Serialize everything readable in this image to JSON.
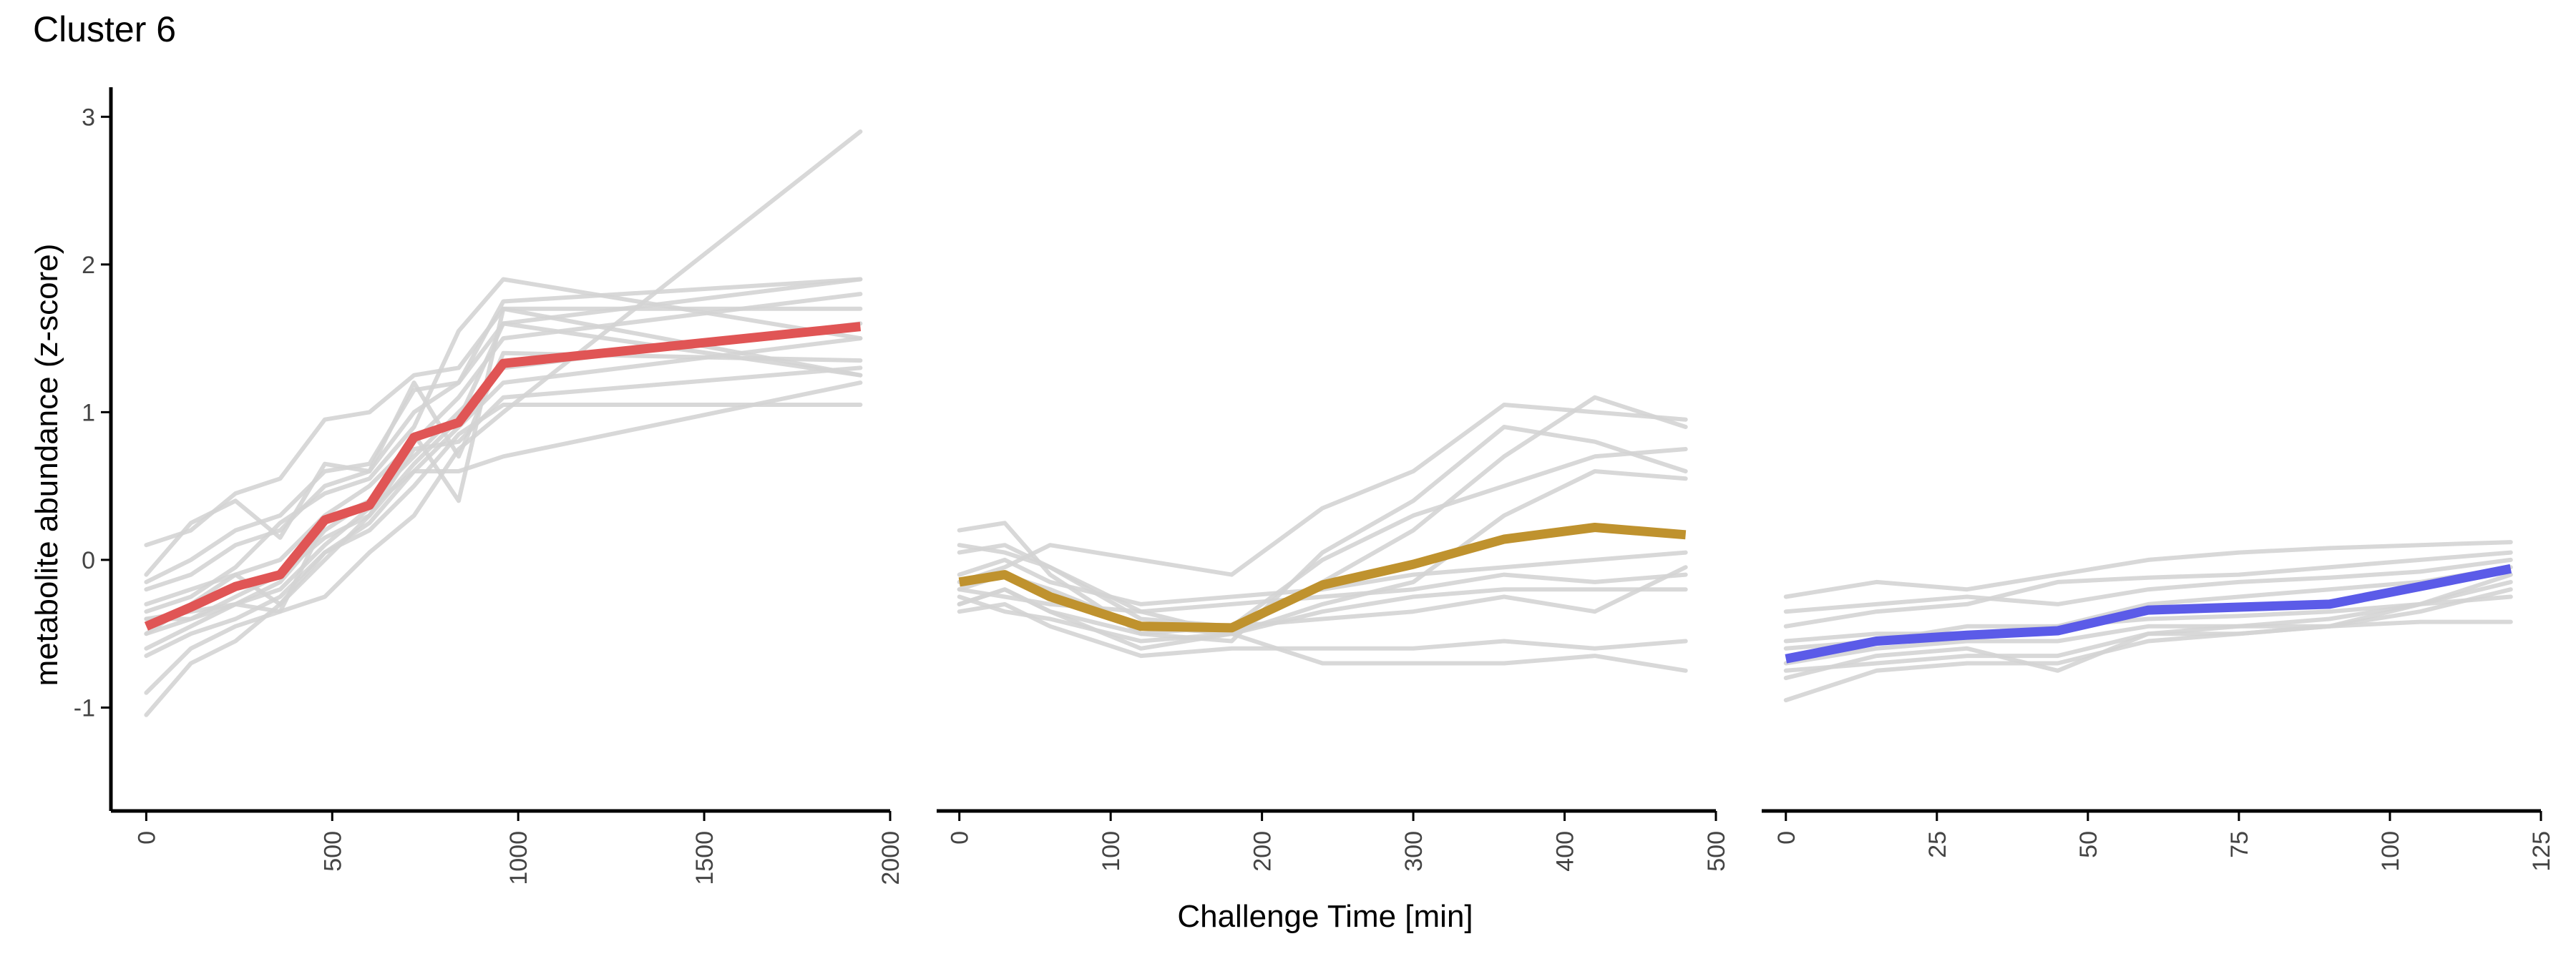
{
  "title": "Cluster 6",
  "xlabel": "Challenge Time [min]",
  "ylabel": "metabolite abundance (z-score)",
  "chart_data": [
    {
      "type": "line",
      "panel": "left",
      "title": "Cluster 6",
      "ylabel": "metabolite abundance (z-score)",
      "xlim": [
        -95,
        2000
      ],
      "ylim": [
        -1.7,
        3.2
      ],
      "xticks": [
        "0",
        "500",
        "1000",
        "1500",
        "2000"
      ],
      "yticks": [
        "-1",
        "0",
        "1",
        "2",
        "3"
      ],
      "x": [
        0,
        120,
        240,
        360,
        480,
        600,
        720,
        840,
        960,
        1920
      ],
      "background_series": [
        [
          -0.4,
          -0.35,
          -0.3,
          -0.15,
          0.2,
          0.4,
          0.7,
          1.0,
          1.3,
          1.6
        ],
        [
          -0.3,
          -0.2,
          -0.1,
          0.0,
          0.3,
          0.5,
          0.8,
          1.1,
          1.5,
          1.8
        ],
        [
          -0.6,
          -0.45,
          -0.3,
          -0.2,
          0.1,
          0.35,
          0.6,
          0.9,
          1.2,
          1.5
        ],
        [
          -0.2,
          -0.1,
          0.1,
          0.2,
          0.5,
          0.6,
          1.0,
          1.2,
          1.6,
          1.9
        ],
        [
          -0.5,
          -0.4,
          -0.25,
          -0.1,
          0.15,
          0.3,
          0.75,
          0.8,
          1.1,
          1.3
        ],
        [
          0.1,
          0.2,
          0.45,
          0.55,
          0.95,
          1.0,
          1.25,
          1.3,
          1.7,
          1.25
        ],
        [
          -1.05,
          -0.7,
          -0.55,
          -0.3,
          0.05,
          0.25,
          0.6,
          0.6,
          0.7,
          1.2
        ],
        [
          -0.9,
          -0.6,
          -0.45,
          -0.35,
          -0.25,
          0.05,
          0.3,
          0.75,
          1.0,
          2.9
        ],
        [
          -0.15,
          0.0,
          0.2,
          0.3,
          0.6,
          0.65,
          1.15,
          1.2,
          1.75,
          1.9
        ],
        [
          -0.35,
          -0.25,
          -0.05,
          0.25,
          0.45,
          0.55,
          0.9,
          1.55,
          1.9,
          1.5
        ],
        [
          -0.65,
          -0.5,
          -0.4,
          -0.25,
          0.05,
          0.2,
          0.5,
          0.85,
          1.05,
          1.05
        ],
        [
          -0.1,
          0.25,
          0.4,
          0.15,
          0.65,
          0.6,
          1.2,
          0.7,
          1.4,
          1.35
        ],
        [
          -0.5,
          -0.3,
          -0.1,
          -0.3,
          0.0,
          0.3,
          0.65,
          0.95,
          1.6,
          1.25
        ],
        [
          -0.4,
          -0.4,
          -0.3,
          -0.35,
          0.25,
          0.4,
          0.85,
          0.4,
          1.7,
          1.7
        ]
      ],
      "highlight": {
        "color": "#e05555",
        "values": [
          -0.45,
          -0.32,
          -0.18,
          -0.1,
          0.27,
          0.37,
          0.83,
          0.93,
          1.33,
          1.58
        ]
      }
    },
    {
      "type": "line",
      "panel": "middle",
      "xlim": [
        -15,
        500
      ],
      "ylim": [
        -1.7,
        3.2
      ],
      "xticks": [
        "0",
        "100",
        "200",
        "300",
        "400",
        "500"
      ],
      "x": [
        0,
        30,
        60,
        120,
        180,
        240,
        300,
        360,
        420,
        480
      ],
      "background_series": [
        [
          -0.2,
          -0.1,
          -0.2,
          -0.45,
          -0.5,
          -0.15,
          0.2,
          0.7,
          1.1,
          0.9
        ],
        [
          0.2,
          0.25,
          -0.1,
          -0.5,
          -0.55,
          0.05,
          0.4,
          0.9,
          0.8,
          0.6
        ],
        [
          -0.3,
          -0.2,
          -0.35,
          -0.6,
          -0.5,
          -0.3,
          -0.15,
          0.3,
          0.6,
          0.55
        ],
        [
          -0.1,
          0.0,
          -0.15,
          -0.3,
          -0.25,
          -0.2,
          -0.1,
          -0.05,
          0.0,
          0.05
        ],
        [
          -0.25,
          -0.35,
          -0.4,
          -0.55,
          -0.5,
          -0.7,
          -0.7,
          -0.7,
          -0.65,
          -0.75
        ],
        [
          -0.15,
          -0.05,
          0.1,
          0.0,
          -0.1,
          0.35,
          0.6,
          1.05,
          1.0,
          0.95
        ],
        [
          -0.35,
          -0.3,
          -0.45,
          -0.65,
          -0.6,
          -0.6,
          -0.6,
          -0.55,
          -0.6,
          -0.55
        ],
        [
          0.05,
          0.1,
          -0.05,
          -0.35,
          -0.5,
          -0.35,
          -0.25,
          -0.2,
          -0.2,
          -0.2
        ],
        [
          -0.2,
          -0.25,
          -0.3,
          -0.35,
          -0.3,
          -0.25,
          -0.2,
          -0.1,
          -0.15,
          -0.1
        ],
        [
          0.1,
          0.05,
          -0.05,
          -0.4,
          -0.45,
          0.0,
          0.3,
          0.5,
          0.7,
          0.75
        ],
        [
          -0.3,
          -0.2,
          -0.35,
          -0.5,
          -0.45,
          -0.4,
          -0.35,
          -0.25,
          -0.35,
          -0.05
        ]
      ],
      "highlight": {
        "color": "#bf922e",
        "values": [
          -0.15,
          -0.1,
          -0.25,
          -0.45,
          -0.46,
          -0.17,
          -0.03,
          0.14,
          0.22,
          0.17
        ]
      }
    },
    {
      "type": "line",
      "panel": "right",
      "xlim": [
        -4,
        125
      ],
      "ylim": [
        -1.7,
        3.2
      ],
      "xticks": [
        "0",
        "25",
        "50",
        "75",
        "100",
        "125"
      ],
      "x": [
        0,
        15,
        30,
        45,
        60,
        75,
        90,
        105,
        120
      ],
      "background_series": [
        [
          -0.25,
          -0.15,
          -0.2,
          -0.1,
          0.0,
          0.05,
          0.08,
          0.1,
          0.12
        ],
        [
          -0.95,
          -0.75,
          -0.7,
          -0.7,
          -0.55,
          -0.5,
          -0.45,
          -0.35,
          -0.2
        ],
        [
          -0.45,
          -0.35,
          -0.3,
          -0.15,
          -0.12,
          -0.1,
          -0.05,
          0.0,
          0.05
        ],
        [
          -0.8,
          -0.65,
          -0.6,
          -0.75,
          -0.5,
          -0.45,
          -0.4,
          -0.3,
          -0.15
        ],
        [
          -0.6,
          -0.55,
          -0.45,
          -0.45,
          -0.4,
          -0.38,
          -0.35,
          -0.3,
          -0.25
        ],
        [
          -0.35,
          -0.3,
          -0.25,
          -0.3,
          -0.2,
          -0.15,
          -0.12,
          -0.08,
          0.0
        ],
        [
          -0.7,
          -0.6,
          -0.55,
          -0.55,
          -0.45,
          -0.45,
          -0.45,
          -0.42,
          -0.42
        ],
        [
          -0.75,
          -0.7,
          -0.65,
          -0.65,
          -0.5,
          -0.5,
          -0.45,
          -0.3,
          -0.1
        ],
        [
          -0.55,
          -0.5,
          -0.5,
          -0.45,
          -0.3,
          -0.25,
          -0.2,
          -0.15,
          -0.05
        ]
      ],
      "highlight": {
        "color": "#5b5be8",
        "values": [
          -0.67,
          -0.55,
          -0.51,
          -0.48,
          -0.34,
          -0.32,
          -0.3,
          -0.18,
          -0.06
        ]
      }
    }
  ]
}
